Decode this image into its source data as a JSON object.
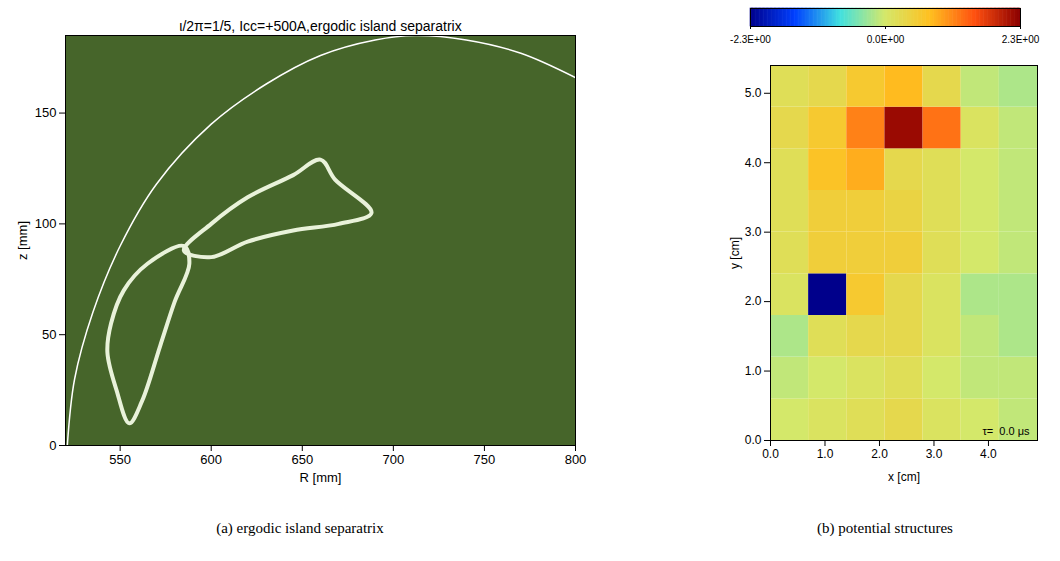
{
  "chart_data": [
    {
      "type": "line",
      "title": "ι/2π=1/5, Icc=+500A,ergodic island separatrix",
      "caption": "(a) ergodic island separatrix",
      "x_label": "R [mm]",
      "y_label": "z [mm]",
      "xlim": [
        520,
        800
      ],
      "ylim": [
        0,
        185
      ],
      "xticks": [
        550,
        600,
        650,
        700,
        750,
        800
      ],
      "yticks": [
        0,
        50,
        100,
        150
      ],
      "color": "#46652a",
      "series": [
        {
          "color": "#e9f2da",
          "line_style": "closed",
          "x": [
            545,
            552,
            565,
            585,
            588,
            580,
            572,
            562,
            555,
            548,
            543
          ],
          "y": [
            55,
            70,
            82,
            90,
            82,
            65,
            45,
            20,
            10,
            25,
            42
          ]
        },
        {
          "color": "#e9f2da",
          "line_style": "closed",
          "x": [
            585,
            600,
            620,
            645,
            660,
            668,
            688,
            670,
            645,
            620,
            600
          ],
          "y": [
            88,
            100,
            112,
            122,
            129,
            120,
            105,
            100,
            97,
            92,
            85
          ]
        },
        {
          "color": "#ffffff",
          "line_style": "open",
          "x": [
            521,
            525,
            535,
            550,
            570,
            600,
            630,
            660,
            690,
            712,
            740,
            770,
            800
          ],
          "y": [
            0,
            30,
            60,
            90,
            118,
            145,
            163,
            176,
            183,
            185,
            183,
            177,
            166
          ]
        }
      ]
    },
    {
      "type": "heatmap",
      "caption": "(b) potential structures",
      "x_label": "x [cm]",
      "y_label": "y [cm]",
      "xlim": [
        0,
        4.9
      ],
      "ylim": [
        0,
        5.4
      ],
      "xticks": [
        0,
        1,
        2,
        3,
        4
      ],
      "yticks": [
        0,
        1,
        2,
        3,
        4,
        5
      ],
      "annotation": "τ=  0.0 μs",
      "x_bins": [
        0,
        0.7,
        1.4,
        2.1,
        2.8,
        3.5,
        4.2,
        4.9
      ],
      "y_bins": [
        0,
        0.6,
        1.2,
        1.8,
        2.4,
        3.0,
        3.6,
        4.2,
        4.8,
        5.4
      ],
      "values": [
        [
          0.0,
          0.1,
          0.2,
          0.3,
          0.1,
          0.0,
          -0.1
        ],
        [
          -0.1,
          0.0,
          0.1,
          0.2,
          0.0,
          -0.1,
          -0.1
        ],
        [
          -0.2,
          0.2,
          0.3,
          0.3,
          0.1,
          -0.1,
          -0.2
        ],
        [
          0.1,
          -2.3,
          0.6,
          0.3,
          0.1,
          -0.2,
          -0.2
        ],
        [
          0.2,
          0.5,
          0.5,
          0.5,
          0.2,
          0.0,
          -0.1
        ],
        [
          0.2,
          0.5,
          0.5,
          0.4,
          0.2,
          0.0,
          -0.1
        ],
        [
          0.2,
          0.7,
          0.9,
          0.3,
          0.2,
          0.0,
          -0.1
        ],
        [
          0.3,
          0.6,
          1.2,
          2.2,
          1.3,
          0.1,
          -0.1
        ],
        [
          0.2,
          0.3,
          0.6,
          0.8,
          0.3,
          -0.1,
          -0.2
        ]
      ],
      "colorbar": {
        "range": [
          -2.3,
          2.3
        ],
        "ticks": [
          {
            "value": -2.3,
            "label": "-2.3E+00"
          },
          {
            "value": 0,
            "label": "0.0E+00"
          },
          {
            "value": 2.3,
            "label": "2.3E+00"
          }
        ],
        "colors": [
          "#00008b",
          "#0040ff",
          "#40e0e0",
          "#d4e86a",
          "#ffc020",
          "#ff5010",
          "#8b0000"
        ]
      }
    }
  ]
}
